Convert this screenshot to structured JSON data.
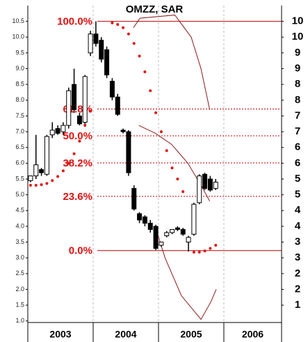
{
  "chart_data": {
    "type": "candlestick",
    "title": "OMZZ, SAR",
    "ylim": [
      0.95,
      11.0
    ],
    "yticks": [
      {
        "value": 1,
        "label": "1.0"
      },
      1.5,
      {
        "value": 2,
        "label": "2.0"
      },
      2.5,
      {
        "value": 3,
        "label": "3.0"
      },
      3.5,
      {
        "value": 4,
        "label": "4.0"
      },
      4.5,
      {
        "value": 5,
        "label": "5.0"
      },
      5.5,
      {
        "value": 6,
        "label": "6.0"
      },
      6.5,
      {
        "value": 7,
        "label": "7.0"
      },
      7.5,
      {
        "value": 8,
        "label": "8.0"
      },
      8.5,
      {
        "value": 9,
        "label": "9.0"
      },
      9.5,
      {
        "value": 10,
        "label": "10.0"
      },
      10.5
    ],
    "y2lim": [
      0.95,
      11.0
    ],
    "y2ticks": [
      {
        "value": 10.5,
        "label": "10"
      },
      {
        "value": 10,
        "label": "10"
      },
      {
        "value": 9.5,
        "label": "9"
      },
      {
        "value": 9,
        "label": "9"
      },
      {
        "value": 8.5,
        "label": "8"
      },
      {
        "value": 8,
        "label": "8"
      },
      {
        "value": 7.5,
        "label": "7"
      },
      {
        "value": 7,
        "label": "7"
      },
      {
        "value": 6.5,
        "label": "6"
      },
      {
        "value": 6,
        "label": "6"
      },
      {
        "value": 5.5,
        "label": "5"
      },
      {
        "value": 5,
        "label": "5"
      },
      {
        "value": 4.5,
        "label": "4"
      },
      {
        "value": 4,
        "label": "4"
      },
      {
        "value": 3.5,
        "label": "3"
      },
      {
        "value": 3,
        "label": "3"
      },
      {
        "value": 2.5,
        "label": "2"
      },
      {
        "value": 2,
        "label": "2"
      },
      {
        "value": 1.5,
        "label": "1"
      }
    ],
    "xlim": [
      0,
      46.6
    ],
    "xticks": [
      {
        "value": 0,
        "label": "2003"
      },
      {
        "value": 12,
        "label": "2004"
      },
      {
        "value": 24,
        "label": "2005"
      },
      {
        "value": 36,
        "label": "2006"
      }
    ],
    "grid": true,
    "candles": {
      "open": [
        5.45,
        5.6,
        5.8,
        5.65,
        6.9,
        7.1,
        7.0,
        7.2,
        8.5,
        7.5,
        7.3,
        9.5,
        10.1,
        9.9,
        9.6,
        8.6,
        8.1,
        7.05,
        7.0,
        5.2,
        4.4,
        4.3,
        4.1,
        4.0,
        3.4,
        3.7,
        3.8,
        3.95,
        3.9,
        3.5,
        3.75,
        4.75,
        5.65,
        5.5,
        5.2
      ],
      "high": [
        5.6,
        6.9,
        5.85,
        6.9,
        7.3,
        7.2,
        7.3,
        8.4,
        9.0,
        7.6,
        8.8,
        10.2,
        10.5,
        10.0,
        9.7,
        8.7,
        8.2,
        7.1,
        7.05,
        5.3,
        4.45,
        4.35,
        4.2,
        4.05,
        3.5,
        3.85,
        3.9,
        4.0,
        3.95,
        3.7,
        4.75,
        5.65,
        5.7,
        5.6,
        5.5
      ],
      "low": [
        5.4,
        5.5,
        5.6,
        5.6,
        6.8,
        6.9,
        6.9,
        7.1,
        7.6,
        7.2,
        7.2,
        9.4,
        9.7,
        9.2,
        8.7,
        8.0,
        7.5,
        6.95,
        5.6,
        4.5,
        4.1,
        4.0,
        3.8,
        3.25,
        3.35,
        3.65,
        3.75,
        3.85,
        3.7,
        3.2,
        3.7,
        4.7,
        5.15,
        5.1,
        5.15
      ],
      "close": [
        5.6,
        5.95,
        5.7,
        6.85,
        7.05,
        6.95,
        7.2,
        8.3,
        7.7,
        7.25,
        8.75,
        10.1,
        9.8,
        9.3,
        8.8,
        8.1,
        7.55,
        7.0,
        5.7,
        4.55,
        4.2,
        4.1,
        3.9,
        3.3,
        3.5,
        3.8,
        3.9,
        3.9,
        3.75,
        3.65,
        4.7,
        5.6,
        5.2,
        5.15,
        5.4
      ]
    },
    "sar": {
      "color": "#e01010",
      "values": [
        5.3,
        5.3,
        5.32,
        5.36,
        5.45,
        5.58,
        5.76,
        6.0,
        6.3,
        6.7,
        7.2,
        7.65,
        null,
        null,
        null,
        10.45,
        10.4,
        10.3,
        10.1,
        9.8,
        9.4,
        8.9,
        8.3,
        7.6,
        7.0,
        6.4,
        5.85,
        5.5,
        5.1,
        null,
        3.18,
        3.18,
        3.22,
        3.3,
        3.4
      ]
    },
    "lines": [
      {
        "x": [
          19.4,
          20.6,
          27,
          30,
          31.8,
          33.4
        ],
        "y": [
          10.3,
          10.6,
          10.7,
          10.0,
          9.0,
          7.7
        ]
      },
      {
        "x": [
          20.4,
          23.4,
          26.4,
          29.4,
          31.8,
          33.4
        ],
        "y": [
          7.2,
          6.95,
          6.6,
          6.0,
          5.3,
          4.8
        ]
      },
      {
        "x": [
          23.4,
          25.2,
          28.2,
          30.6,
          31.8,
          33.6,
          34.6
        ],
        "y": [
          4.0,
          3.0,
          1.8,
          1.3,
          1.05,
          1.6,
          2.0
        ]
      }
    ],
    "fib": [
      {
        "label": "100.0%",
        "value": 10.5,
        "style": "solid"
      },
      {
        "label": "61.8%",
        "value": 7.72,
        "style": "dotted"
      },
      {
        "label": "50.0%",
        "value": 6.87,
        "style": "dotted"
      },
      {
        "label": "38.2%",
        "value": 6.01,
        "style": "dotted"
      },
      {
        "label": "23.6%",
        "value": 4.95,
        "style": "dotted"
      },
      {
        "label": "0.0%",
        "value": 3.23,
        "style": "solid"
      }
    ],
    "fib_color": "#c00000"
  }
}
